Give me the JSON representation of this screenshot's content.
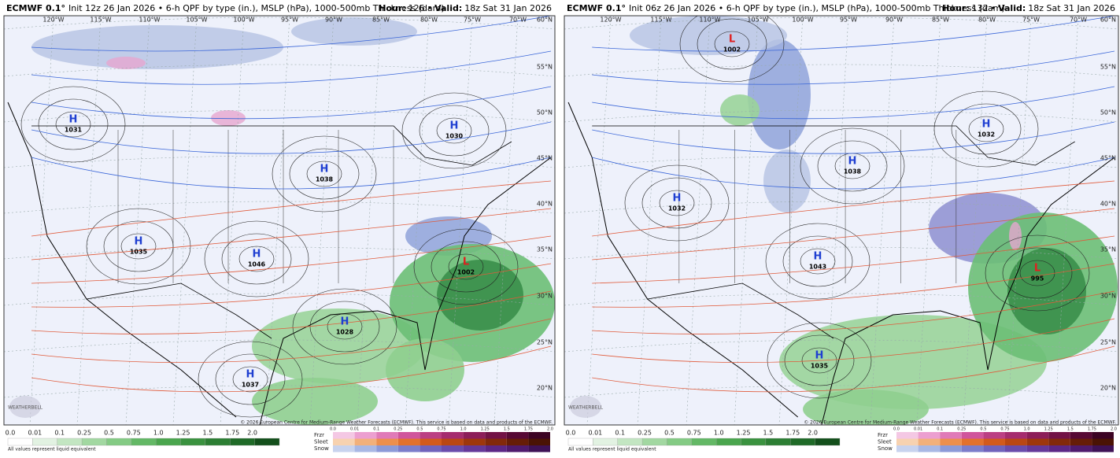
{
  "panels": [
    {
      "header": {
        "model": "ECMWF 0.1°",
        "title": "Init 12z 26 Jan 2026 • 6-h QPF by type (in.), MSLP (hPa), 1000-500mb Thickness (dam)",
        "hour_label": "Hour:",
        "hour": "126",
        "separator": "•",
        "valid_label": "Valid:",
        "valid": "18z Sat 31 Jan 2026"
      },
      "longitudes": [
        "120°W",
        "115°W",
        "110°W",
        "105°W",
        "100°W",
        "95°W",
        "90°W",
        "85°W",
        "80°W",
        "75°W",
        "70°W"
      ],
      "latitudes": [
        "60°N",
        "55°N",
        "50°N",
        "45°N",
        "40°N",
        "35°N",
        "30°N",
        "25°N",
        "20°N"
      ],
      "centers": [
        {
          "type": "H",
          "value": "1031"
        },
        {
          "type": "H",
          "value": "1030"
        },
        {
          "type": "H",
          "value": "1038"
        },
        {
          "type": "H",
          "value": "1035"
        },
        {
          "type": "H",
          "value": "1046"
        },
        {
          "type": "L",
          "value": "1002"
        },
        {
          "type": "H",
          "value": "1028"
        },
        {
          "type": "H",
          "value": "1037"
        }
      ],
      "copyright": "© 2026 European Centre for Medium-Range Weather Forecasts (ECMWF). This service is based on data and products of the ECMWF.",
      "logo": "WEATHERBELL"
    },
    {
      "header": {
        "model": "ECMWF 0.1°",
        "title": "Init 06z 26 Jan 2026 • 6-h QPF by type (in.), MSLP (hPa), 1000-500mb Thickness (dam)",
        "hour_label": "Hour:",
        "hour": "132",
        "separator": "•",
        "valid_label": "Valid:",
        "valid": "18z Sat 31 Jan 2026"
      },
      "longitudes": [
        "120°W",
        "115°W",
        "110°W",
        "105°W",
        "100°W",
        "95°W",
        "90°W",
        "85°W",
        "80°W",
        "75°W",
        "70°W"
      ],
      "latitudes": [
        "60°N",
        "55°N",
        "50°N",
        "45°N",
        "40°N",
        "35°N",
        "30°N",
        "25°N",
        "20°N"
      ],
      "centers": [
        {
          "type": "L",
          "value": "1002"
        },
        {
          "type": "H",
          "value": "1032"
        },
        {
          "type": "H",
          "value": "1038"
        },
        {
          "type": "H",
          "value": "1032"
        },
        {
          "type": "H",
          "value": "1043"
        },
        {
          "type": "L",
          "value": "995"
        },
        {
          "type": "H",
          "value": "1035"
        }
      ],
      "copyright": "© 2026 European Centre for Medium-Range Weather Forecasts (ECMWF). This service is based on data and products of the ECMWF.",
      "logo": "WEATHERBELL"
    }
  ],
  "legend": {
    "scale": [
      "0.0",
      "0.01",
      "0.1",
      "0.25",
      "0.5",
      "0.75",
      "1.0",
      "1.25",
      "1.5",
      "1.75",
      "2.0"
    ],
    "types": [
      "Frzr",
      "Sleet",
      "Snow"
    ],
    "note": "All values represent liquid equivalent"
  }
}
